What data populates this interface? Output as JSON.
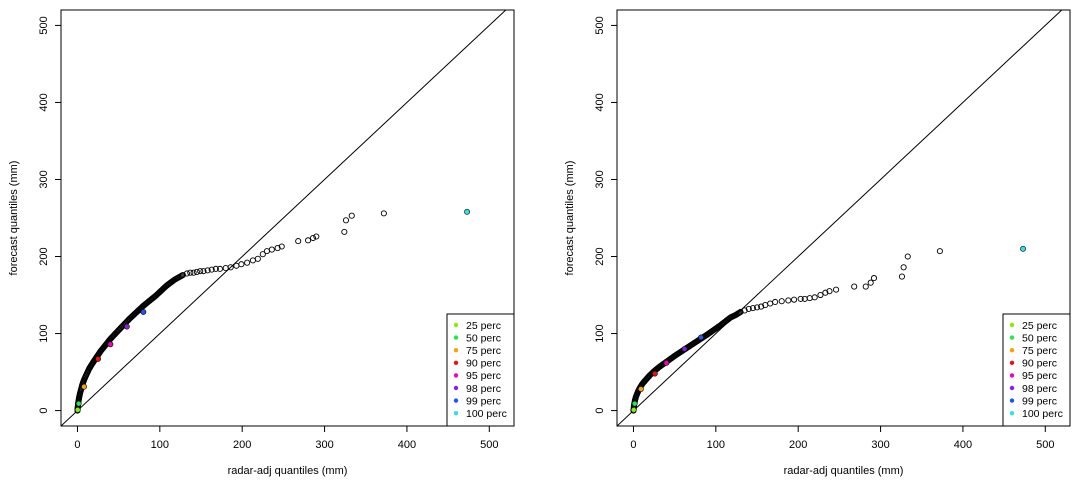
{
  "chart_data": [
    {
      "type": "scatter",
      "title": "",
      "xlabel": "radar-adj quantiles (mm)",
      "ylabel": "forecast quantiles (mm)",
      "xlim": [
        -20,
        530
      ],
      "ylim": [
        -20,
        520
      ],
      "xticks": [
        0,
        100,
        200,
        300,
        400,
        500
      ],
      "yticks": [
        0,
        100,
        200,
        300,
        400,
        500
      ],
      "grid": false,
      "reference_line": "y = x",
      "legend_position": "bottom-right",
      "legend": [
        {
          "label": "25 perc",
          "color": "#84f000"
        },
        {
          "label": "50 perc",
          "color": "#22e84a"
        },
        {
          "label": "75 perc",
          "color": "#ffa000"
        },
        {
          "label": "90 perc",
          "color": "#ee1111"
        },
        {
          "label": "95 perc",
          "color": "#f400b8"
        },
        {
          "label": "98 perc",
          "color": "#8a1ee8"
        },
        {
          "label": "99 perc",
          "color": "#2255ee"
        },
        {
          "label": "100 perc",
          "color": "#2fe3e3"
        }
      ],
      "curve": {
        "x": [
          0,
          0.3,
          0.7,
          1.2,
          2,
          3,
          4.5,
          6,
          8,
          11,
          14,
          18,
          23,
          28,
          34,
          40,
          47,
          55,
          63,
          72,
          80,
          88,
          95,
          102,
          108,
          113,
          118,
          123,
          128
        ],
        "y": [
          0,
          4,
          8,
          12,
          17,
          22,
          28,
          34,
          40,
          47,
          54,
          61,
          69,
          77,
          85,
          93,
          101,
          110,
          119,
          128,
          136,
          143,
          149,
          156,
          162,
          166,
          170,
          173,
          176
        ]
      },
      "tail_points": {
        "x": [
          133,
          137,
          141,
          145,
          149,
          153,
          158,
          163,
          168,
          173,
          180,
          186,
          193,
          199,
          206,
          213,
          219,
          225,
          230,
          236,
          243,
          248,
          268,
          280,
          286,
          290,
          324,
          326,
          333,
          372
        ],
        "y": [
          178,
          179,
          179,
          180,
          181,
          181,
          182,
          183,
          184,
          184,
          185,
          186,
          188,
          190,
          192,
          195,
          197,
          203,
          207,
          209,
          211,
          213,
          220,
          221,
          224,
          226,
          232,
          247,
          253,
          256
        ]
      },
      "percentile_points": [
        {
          "label": "25 perc",
          "x": 0.3,
          "y": 1
        },
        {
          "label": "50 perc",
          "x": 1.5,
          "y": 9
        },
        {
          "label": "75 perc",
          "x": 8,
          "y": 31
        },
        {
          "label": "90 perc",
          "x": 25,
          "y": 67
        },
        {
          "label": "95 perc",
          "x": 40,
          "y": 86
        },
        {
          "label": "98 perc",
          "x": 60,
          "y": 109
        },
        {
          "label": "99 perc",
          "x": 80,
          "y": 128
        },
        {
          "label": "100 perc",
          "x": 473,
          "y": 258
        }
      ]
    },
    {
      "type": "scatter",
      "title": "",
      "xlabel": "radar-adj quantiles (mm)",
      "ylabel": "forecast quantiles (mm)",
      "xlim": [
        -20,
        530
      ],
      "ylim": [
        -20,
        520
      ],
      "xticks": [
        0,
        100,
        200,
        300,
        400,
        500
      ],
      "yticks": [
        0,
        100,
        200,
        300,
        400,
        500
      ],
      "grid": false,
      "reference_line": "y = x",
      "legend_position": "bottom-right",
      "legend": [
        {
          "label": "25 perc",
          "color": "#84f000"
        },
        {
          "label": "50 perc",
          "color": "#22e84a"
        },
        {
          "label": "75 perc",
          "color": "#ffa000"
        },
        {
          "label": "90 perc",
          "color": "#ee1111"
        },
        {
          "label": "95 perc",
          "color": "#f400b8"
        },
        {
          "label": "98 perc",
          "color": "#8a1ee8"
        },
        {
          "label": "99 perc",
          "color": "#2255ee"
        },
        {
          "label": "100 perc",
          "color": "#2fe3e3"
        }
      ],
      "curve": {
        "x": [
          0,
          0.3,
          0.7,
          1.2,
          2,
          3,
          4.5,
          6,
          8,
          11,
          15,
          20,
          26,
          33,
          41,
          50,
          60,
          70,
          80,
          90,
          98,
          106,
          112,
          118,
          124,
          130
        ],
        "y": [
          0,
          3,
          7,
          10,
          14,
          18,
          22,
          26,
          30,
          35,
          40,
          46,
          52,
          58,
          64,
          71,
          78,
          85,
          92,
          99,
          105,
          111,
          116,
          121,
          124,
          128
        ]
      },
      "tail_points": {
        "x": [
          135,
          140,
          145,
          150,
          155,
          160,
          166,
          172,
          180,
          188,
          195,
          203,
          208,
          214,
          220,
          227,
          233,
          238,
          246,
          268,
          282,
          288,
          292,
          326,
          328,
          333,
          372
        ],
        "y": [
          130,
          132,
          133,
          134,
          135,
          137,
          139,
          141,
          142,
          143,
          144,
          145,
          145,
          146,
          147,
          150,
          153,
          155,
          157,
          161,
          161,
          166,
          172,
          174,
          186,
          200,
          207
        ]
      },
      "percentile_points": [
        {
          "label": "25 perc",
          "x": 0.3,
          "y": 1
        },
        {
          "label": "50 perc",
          "x": 1.5,
          "y": 9
        },
        {
          "label": "75 perc",
          "x": 9,
          "y": 28
        },
        {
          "label": "90 perc",
          "x": 26,
          "y": 48
        },
        {
          "label": "95 perc",
          "x": 40,
          "y": 62
        },
        {
          "label": "98 perc",
          "x": 62,
          "y": 80
        },
        {
          "label": "99 perc",
          "x": 82,
          "y": 95
        },
        {
          "label": "100 perc",
          "x": 473,
          "y": 210
        }
      ]
    }
  ]
}
